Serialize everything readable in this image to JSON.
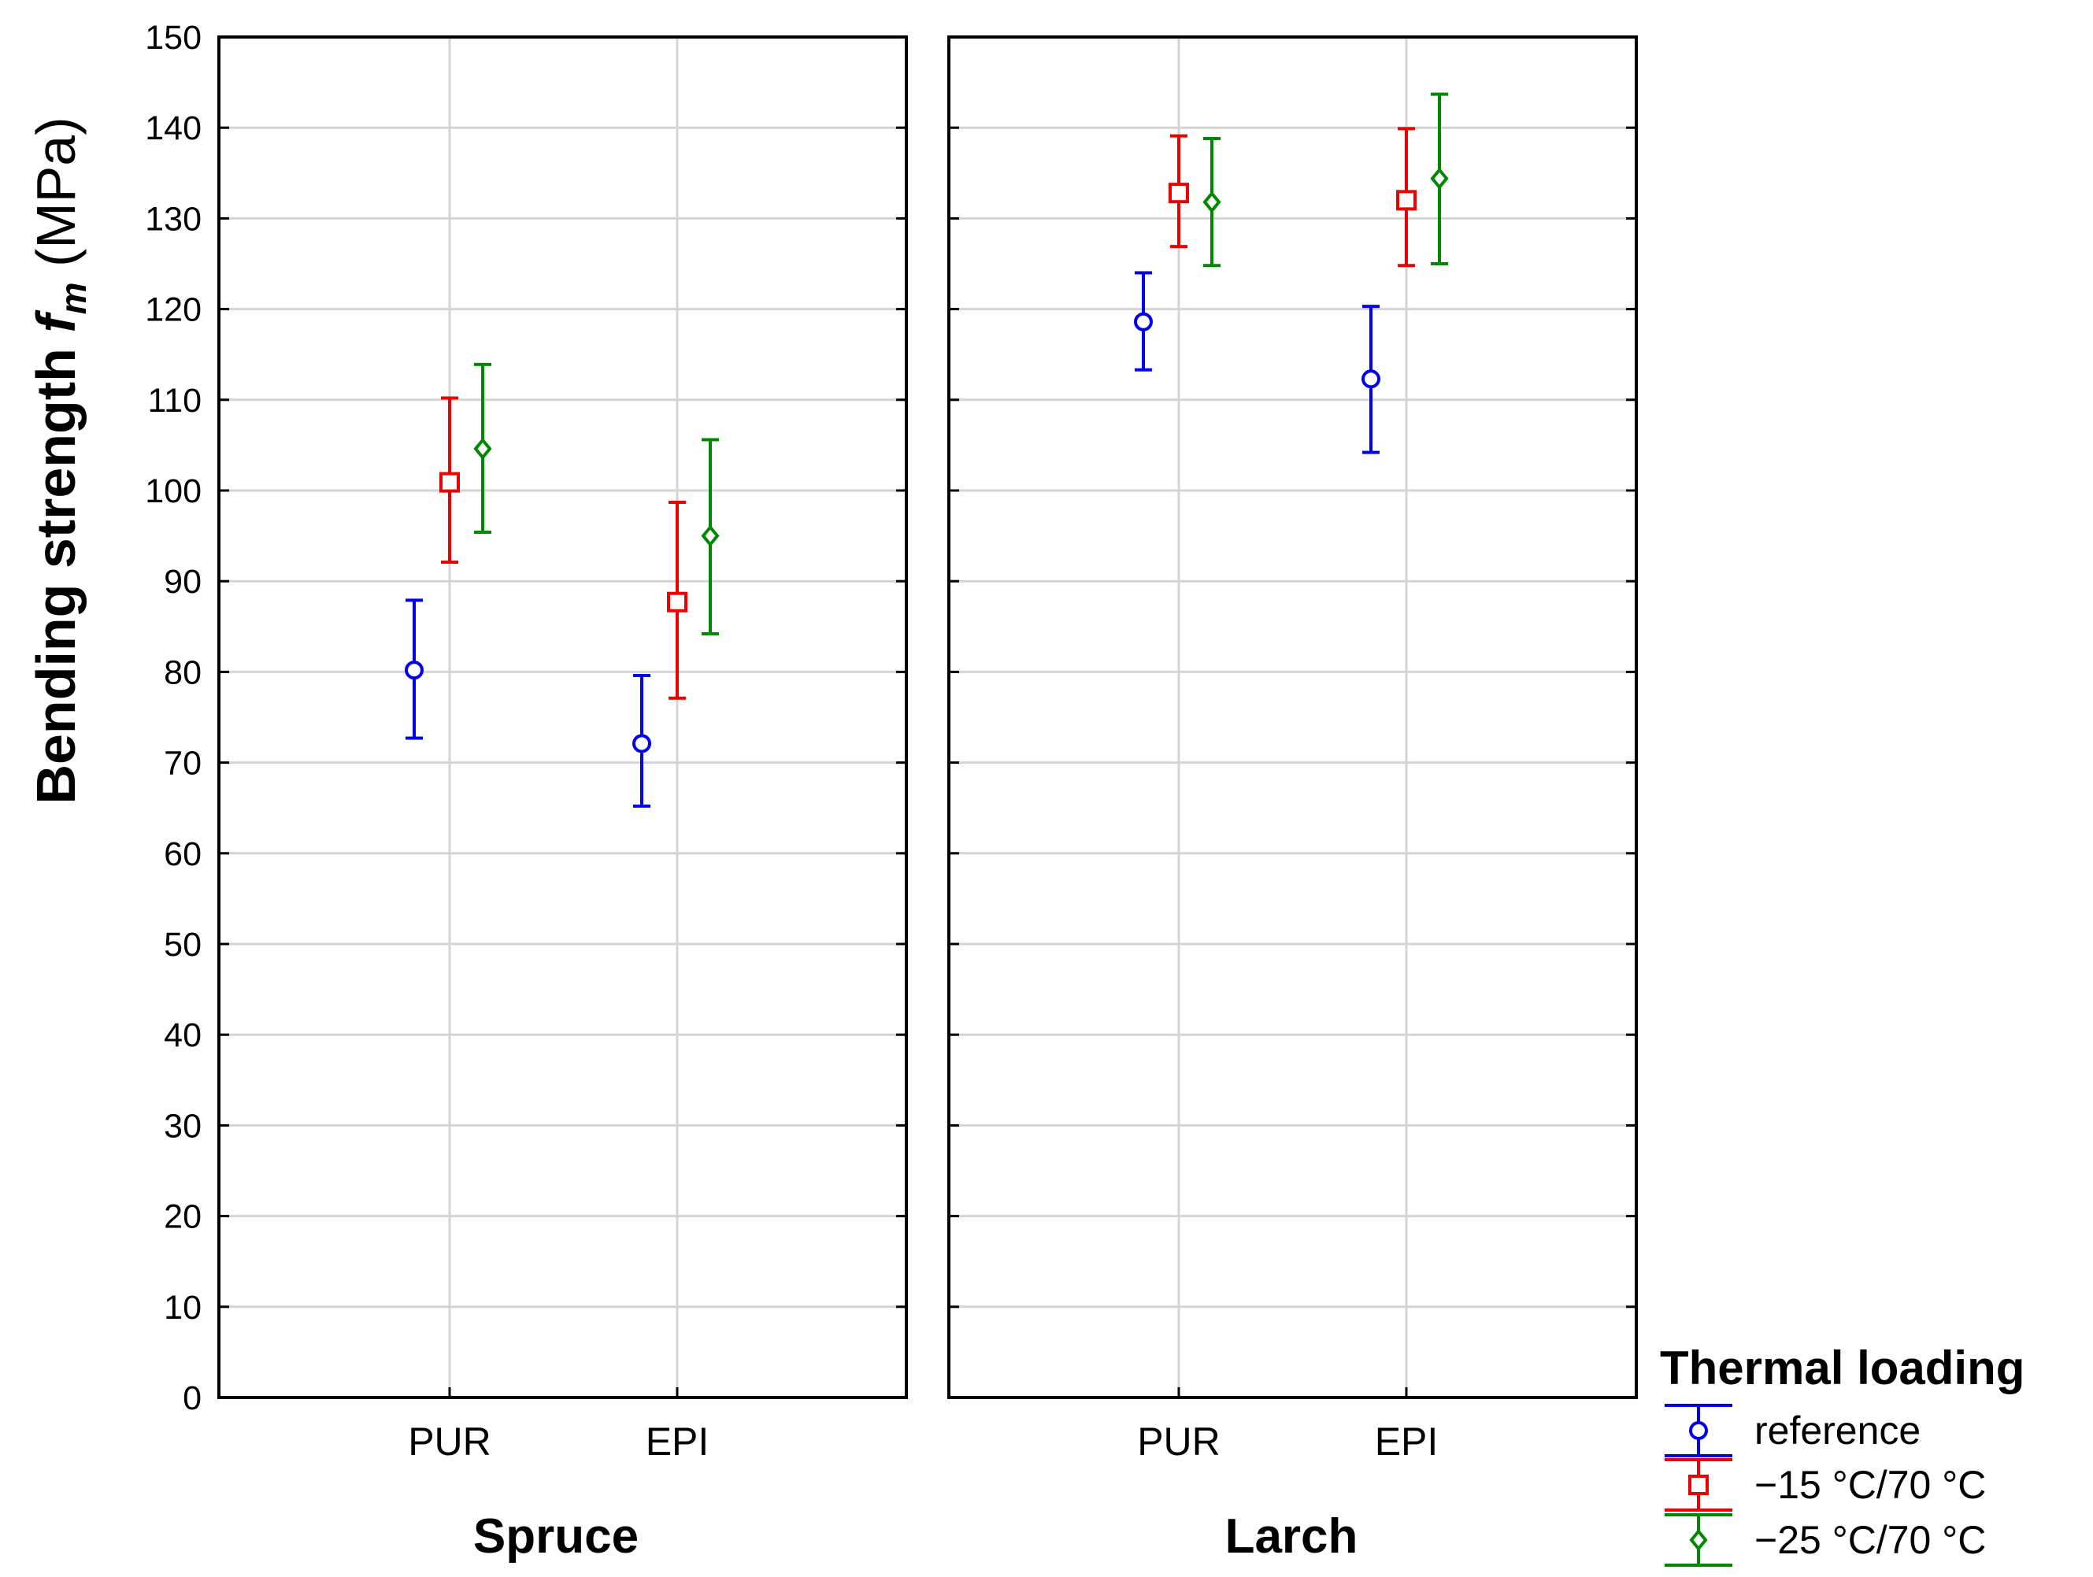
{
  "chart_data": {
    "type": "errorbar",
    "ylabel_main": "Bending strength ",
    "ylabel_symbol": "f",
    "ylabel_subscript": "m",
    "ylabel_unit": " (MPa)",
    "ylim": [
      0,
      150
    ],
    "yticks": [
      0,
      10,
      20,
      30,
      40,
      50,
      60,
      70,
      80,
      90,
      100,
      110,
      120,
      130,
      140,
      150
    ],
    "grid": true,
    "categories": [
      "PUR",
      "EPI"
    ],
    "legend_title": "Thermal loading",
    "legend_position": "bottom-right",
    "series": [
      {
        "name": "reference",
        "color": "#0000ee",
        "marker": "circle"
      },
      {
        "name": "−15 °C/70 °C",
        "color": "#ee0000",
        "marker": "square"
      },
      {
        "name": "−25 °C/70 °C",
        "color": "#008800",
        "marker": "diamond"
      }
    ],
    "panels": [
      {
        "title": "Spruce",
        "values": {
          "PUR": [
            {
              "mean": 80.2,
              "low": 72.7,
              "high": 87.9
            },
            {
              "mean": 100.9,
              "low": 92.1,
              "high": 110.2
            },
            {
              "mean": 104.6,
              "low": 95.4,
              "high": 113.9
            }
          ],
          "EPI": [
            {
              "mean": 72.1,
              "low": 65.2,
              "high": 79.6
            },
            {
              "mean": 87.7,
              "low": 77.1,
              "high": 98.7
            },
            {
              "mean": 95.0,
              "low": 84.2,
              "high": 105.6
            }
          ]
        }
      },
      {
        "title": "Larch",
        "values": {
          "PUR": [
            {
              "mean": 118.6,
              "low": 113.3,
              "high": 124.0
            },
            {
              "mean": 132.8,
              "low": 126.9,
              "high": 139.1
            },
            {
              "mean": 131.8,
              "low": 124.8,
              "high": 138.8
            }
          ],
          "EPI": [
            {
              "mean": 112.3,
              "low": 104.2,
              "high": 120.3
            },
            {
              "mean": 132.0,
              "low": 124.8,
              "high": 139.9
            },
            {
              "mean": 134.4,
              "low": 125.0,
              "high": 143.7
            }
          ]
        }
      }
    ]
  }
}
